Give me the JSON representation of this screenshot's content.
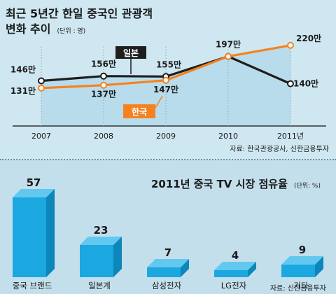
{
  "line_chart_title_line1": "최근 5년간 한일 중국인 관광객",
  "line_chart_title_line2": "변화 추이",
  "line_chart_unit": "(단위 : 명)",
  "line_chart_source": "자료: 한국관광공사, 신한금융투자",
  "bar_chart_title": "2011년 중국 TV 시장 점유율",
  "bar_chart_unit": "(단위: %)",
  "bar_chart_source": "자료: 신한금융투자",
  "colors": {
    "japan": "#1e1e1e",
    "korea": "#f58220",
    "area": "#b9dcec",
    "bar_front": "#1ba7e0",
    "bar_top": "#63c8ef",
    "bar_side": "#0d86ba"
  },
  "chart_data": [
    {
      "type": "line",
      "title": "최근 5년간 한일 중국인 관광객 변화 추이",
      "x": [
        "2007",
        "2008",
        "2009",
        "2010",
        "2011년"
      ],
      "ylim": [
        100,
        240
      ],
      "series": [
        {
          "name": "일본",
          "values": [
            146,
            156,
            155,
            197,
            140
          ],
          "labels": [
            "146만",
            "156만",
            "155만",
            "197만",
            "140만"
          ]
        },
        {
          "name": "한국",
          "values": [
            131,
            137,
            147,
            197,
            220
          ],
          "labels": [
            "131만",
            "137만",
            "147만",
            "",
            "220만"
          ]
        }
      ]
    },
    {
      "type": "bar",
      "title": "2011년 중국 TV 시장 점유율",
      "categories": [
        "중국 브랜드",
        "일본계",
        "삼성전자",
        "LG전자",
        "기타"
      ],
      "values": [
        57,
        23,
        7,
        4,
        9
      ],
      "ylim": [
        0,
        60
      ]
    }
  ]
}
